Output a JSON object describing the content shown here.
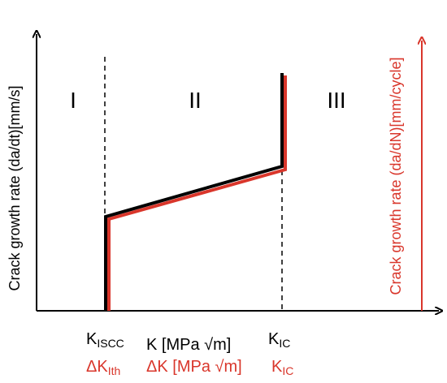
{
  "colors": {
    "black": "#000000",
    "red": "#d9362b",
    "background": "#ffffff"
  },
  "y_axis_left_label": "Crack growth rate  (da/dt)[mm/s]",
  "y_axis_right_label": "Crack growth rate  (da/dN)[mm/cycle]",
  "regions": [
    "I",
    "II",
    "III"
  ],
  "x_labels": {
    "k_iscc_main": "K",
    "k_iscc_sub": "ISCC",
    "k_axis": "K [MPa √m]",
    "k_ic_main": "K",
    "k_ic_sub": "IC",
    "dk_ith_main": "ΔK",
    "dk_ith_sub": "Ith",
    "dk_axis": "ΔK [MPa √m]",
    "red_k_ic_main": "K",
    "red_k_ic_sub": "IC"
  }
}
